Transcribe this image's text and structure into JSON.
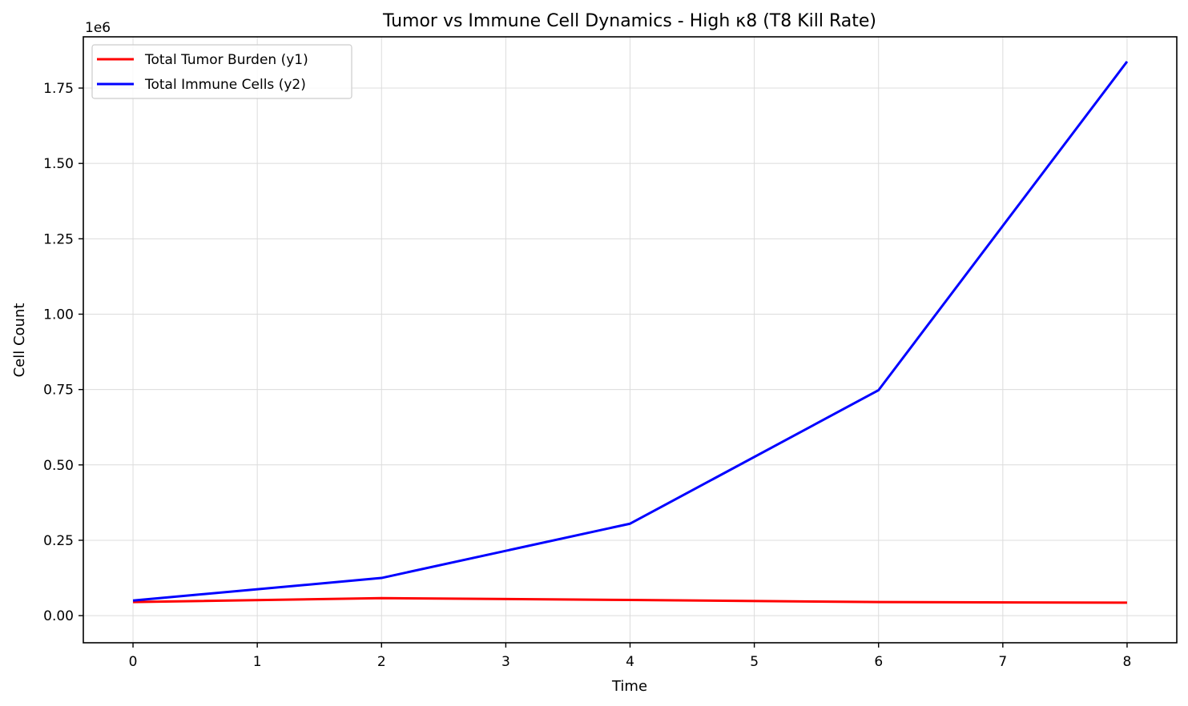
{
  "chart_data": {
    "type": "line",
    "title": "Tumor vs Immune Cell Dynamics - High κ8 (T8 Kill Rate)",
    "xlabel": "Time",
    "ylabel": "Cell Count",
    "y_offset_label": "1e6",
    "xlim": [
      -0.4,
      8.4
    ],
    "ylim": [
      -0.09,
      1.92
    ],
    "x_ticks": [
      0,
      1,
      2,
      3,
      4,
      5,
      6,
      7,
      8
    ],
    "x_tick_labels": [
      "0",
      "1",
      "2",
      "3",
      "4",
      "5",
      "6",
      "7",
      "8"
    ],
    "y_ticks": [
      0,
      0.25,
      0.5,
      0.75,
      1.0,
      1.25,
      1.5,
      1.75
    ],
    "y_tick_labels": [
      "0.00",
      "0.25",
      "0.50",
      "0.75",
      "1.00",
      "1.25",
      "1.50",
      "1.75"
    ],
    "grid": true,
    "legend_position": "top-left",
    "series": [
      {
        "name": "Total Tumor Burden (y1)",
        "color": "#ff0000",
        "x": [
          0,
          2,
          4,
          6,
          8
        ],
        "y": [
          0.045,
          0.058,
          0.052,
          0.045,
          0.043
        ]
      },
      {
        "name": "Total Immune Cells (y2)",
        "color": "#0000ff",
        "x": [
          0,
          2,
          4,
          6,
          8
        ],
        "y": [
          0.05,
          0.125,
          0.305,
          0.748,
          1.838
        ]
      }
    ]
  }
}
